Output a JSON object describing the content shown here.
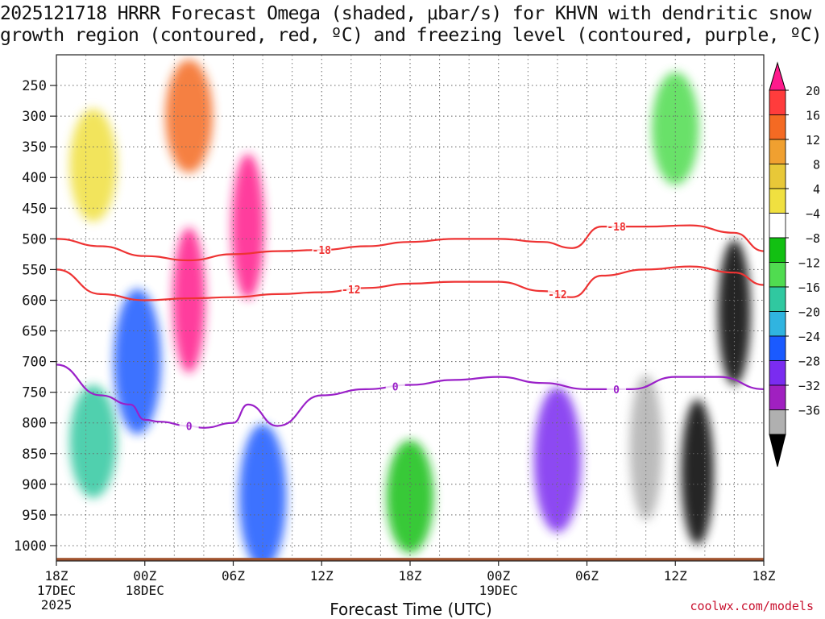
{
  "chart_data": {
    "type": "heatmap",
    "title": {
      "line1": "2025121718 HRRR Forecast Omega (shaded, μbar/s) for KHVN with dendritic snow",
      "line2": "growth region (contoured, red, ºC) and freezing level (contoured, purple, ºC)"
    },
    "xlabel": "Forecast Time (UTC)",
    "x_ticks": [
      {
        "hour": 0,
        "label": "18Z",
        "sub1": "17DEC",
        "sub2": "2025"
      },
      {
        "hour": 6,
        "label": "00Z",
        "sub1": "18DEC",
        "sub2": ""
      },
      {
        "hour": 12,
        "label": "06Z",
        "sub1": "",
        "sub2": ""
      },
      {
        "hour": 18,
        "label": "12Z",
        "sub1": "",
        "sub2": ""
      },
      {
        "hour": 24,
        "label": "18Z",
        "sub1": "",
        "sub2": ""
      },
      {
        "hour": 30,
        "label": "00Z",
        "sub1": "19DEC",
        "sub2": ""
      },
      {
        "hour": 36,
        "label": "06Z",
        "sub1": "",
        "sub2": ""
      },
      {
        "hour": 42,
        "label": "12Z",
        "sub1": "",
        "sub2": ""
      },
      {
        "hour": 48,
        "label": "18Z",
        "sub1": "",
        "sub2": ""
      }
    ],
    "xlim": [
      0,
      48
    ],
    "ylabel": "",
    "y_unit": "hPa",
    "y_ticks": [
      250,
      300,
      350,
      400,
      450,
      500,
      550,
      600,
      650,
      700,
      750,
      800,
      850,
      900,
      950,
      1000
    ],
    "ylim": [
      1025,
      200
    ],
    "colorbar": {
      "unit": "μbar/s",
      "labels": [
        "20",
        "16",
        "12",
        "8",
        "4",
        "−4",
        "−8",
        "−12",
        "−16",
        "−20",
        "−24",
        "−28",
        "−32",
        "−36"
      ],
      "colors": [
        "#ff1a8c",
        "#ff3c3c",
        "#f46a23",
        "#f0a030",
        "#e8c838",
        "#f0e040",
        "#ffffff",
        "#12c012",
        "#50dc50",
        "#30c8a0",
        "#30b4e0",
        "#1a5aff",
        "#7a2cf0",
        "#a020c0",
        "#b0b0b0",
        "#000000"
      ]
    },
    "shading_fields": [
      {
        "hour": 2.5,
        "p": 830,
        "value": -12
      },
      {
        "hour": 2.5,
        "p": 380,
        "value": 6
      },
      {
        "hour": 5.5,
        "p": 700,
        "value": -22
      },
      {
        "hour": 9.0,
        "p": 600,
        "value": 22
      },
      {
        "hour": 9.0,
        "p": 300,
        "value": 14
      },
      {
        "hour": 13.0,
        "p": 480,
        "value": 20
      },
      {
        "hour": 14.0,
        "p": 920,
        "value": -20
      },
      {
        "hour": 24.0,
        "p": 920,
        "value": -7
      },
      {
        "hour": 34.0,
        "p": 860,
        "value": -26
      },
      {
        "hour": 40.0,
        "p": 840,
        "value": -34
      },
      {
        "hour": 43.5,
        "p": 880,
        "value": -40
      },
      {
        "hour": 46.0,
        "p": 620,
        "value": -38
      },
      {
        "hour": 42.0,
        "p": 320,
        "value": -8
      }
    ],
    "series": [
      {
        "name": "-18 C isotherm",
        "color": "#ee3333",
        "label": "-18",
        "hours": [
          0,
          3,
          6,
          9,
          12,
          15,
          18,
          21,
          24,
          27,
          30,
          33,
          35,
          37,
          40,
          43,
          46,
          48
        ],
        "p": [
          500,
          512,
          528,
          535,
          525,
          520,
          518,
          512,
          505,
          500,
          500,
          505,
          515,
          480,
          480,
          478,
          490,
          520
        ]
      },
      {
        "name": "-12 C isotherm",
        "color": "#ee3333",
        "label": "-12",
        "hours": [
          0,
          3,
          6,
          9,
          12,
          15,
          18,
          21,
          24,
          27,
          30,
          33,
          35,
          37,
          40,
          43,
          46,
          48
        ],
        "p": [
          550,
          590,
          600,
          597,
          595,
          590,
          587,
          580,
          573,
          570,
          570,
          585,
          595,
          560,
          550,
          545,
          555,
          575
        ]
      },
      {
        "name": "0 C freezing level",
        "color": "#9a20c8",
        "label": "0",
        "hours": [
          0,
          3,
          5,
          6,
          7,
          9,
          10,
          12,
          13,
          15,
          18,
          21,
          24,
          27,
          30,
          33,
          36,
          39,
          42,
          45,
          48
        ],
        "p": [
          705,
          755,
          770,
          795,
          798,
          805,
          808,
          800,
          770,
          805,
          755,
          745,
          738,
          730,
          725,
          735,
          745,
          745,
          725,
          725,
          745
        ]
      }
    ],
    "surface": {
      "label": "terrain",
      "color": "#a0522d",
      "p": 1020
    }
  },
  "footer": {
    "credit": "coolwx.com/models"
  }
}
